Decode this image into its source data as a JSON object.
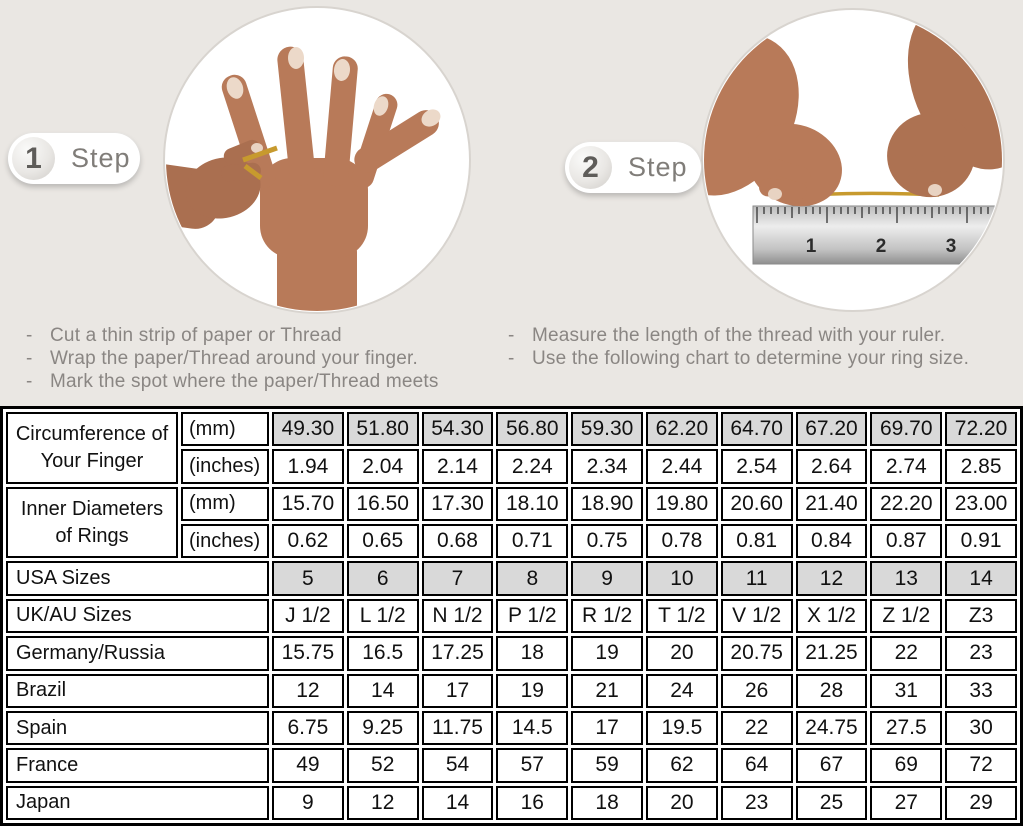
{
  "bullet": "-",
  "steps": [
    {
      "number": "1",
      "label": "Step",
      "instructions": [
        "Cut a thin strip of paper or Thread",
        "Wrap the paper/Thread around your finger.",
        "Mark the spot where the paper/Thread meets"
      ]
    },
    {
      "number": "2",
      "label": "Step",
      "instructions": [
        "Measure the length of the thread with your ruler.",
        "Use the following chart to determine your ring size."
      ]
    }
  ],
  "illustrations": {
    "step1": "hand with gold thread tied around finger",
    "step2": "hands measuring thread length on a metal ruler",
    "ruler_numbers": [
      "1",
      "2",
      "3"
    ]
  },
  "colors": {
    "background": "#eae7e3",
    "shaded_cell": "#d9d9d9",
    "table_border": "#000000",
    "instruction_text": "#8a8683",
    "gold_thread": "#c79a2e"
  },
  "table": {
    "rows": [
      {
        "label": "Circumference of Your Finger",
        "label_rowspan": 2,
        "unit": "(mm)",
        "shaded": true,
        "values": [
          "49.30",
          "51.80",
          "54.30",
          "56.80",
          "59.30",
          "62.20",
          "64.70",
          "67.20",
          "69.70",
          "72.20"
        ]
      },
      {
        "unit": "(inches)",
        "shaded": false,
        "values": [
          "1.94",
          "2.04",
          "2.14",
          "2.24",
          "2.34",
          "2.44",
          "2.54",
          "2.64",
          "2.74",
          "2.85"
        ]
      },
      {
        "label": "Inner Diameters of Rings",
        "label_rowspan": 2,
        "unit": "(mm)",
        "shaded": false,
        "values": [
          "15.70",
          "16.50",
          "17.30",
          "18.10",
          "18.90",
          "19.80",
          "20.60",
          "21.40",
          "22.20",
          "23.00"
        ]
      },
      {
        "unit": "(inches)",
        "shaded": false,
        "values": [
          "0.62",
          "0.65",
          "0.68",
          "0.71",
          "0.75",
          "0.78",
          "0.81",
          "0.84",
          "0.87",
          "0.91"
        ]
      },
      {
        "label": "USA Sizes",
        "label_colspan": 2,
        "shaded": true,
        "values": [
          "5",
          "6",
          "7",
          "8",
          "9",
          "10",
          "11",
          "12",
          "13",
          "14"
        ]
      },
      {
        "label": "UK/AU Sizes",
        "label_colspan": 2,
        "shaded": false,
        "values": [
          "J 1/2",
          "L 1/2",
          "N 1/2",
          "P 1/2",
          "R 1/2",
          "T 1/2",
          "V 1/2",
          "X 1/2",
          "Z 1/2",
          "Z3"
        ]
      },
      {
        "label": "Germany/Russia",
        "label_colspan": 2,
        "shaded": false,
        "values": [
          "15.75",
          "16.5",
          "17.25",
          "18",
          "19",
          "20",
          "20.75",
          "21.25",
          "22",
          "23"
        ]
      },
      {
        "label": "Brazil",
        "label_colspan": 2,
        "shaded": false,
        "values": [
          "12",
          "14",
          "17",
          "19",
          "21",
          "24",
          "26",
          "28",
          "31",
          "33"
        ]
      },
      {
        "label": "Spain",
        "label_colspan": 2,
        "shaded": false,
        "values": [
          "6.75",
          "9.25",
          "11.75",
          "14.5",
          "17",
          "19.5",
          "22",
          "24.75",
          "27.5",
          "30"
        ]
      },
      {
        "label": "France",
        "label_colspan": 2,
        "shaded": false,
        "values": [
          "49",
          "52",
          "54",
          "57",
          "59",
          "62",
          "64",
          "67",
          "69",
          "72"
        ]
      },
      {
        "label": "Japan",
        "label_colspan": 2,
        "shaded": false,
        "values": [
          "9",
          "12",
          "14",
          "16",
          "18",
          "20",
          "23",
          "25",
          "27",
          "29"
        ]
      }
    ]
  }
}
